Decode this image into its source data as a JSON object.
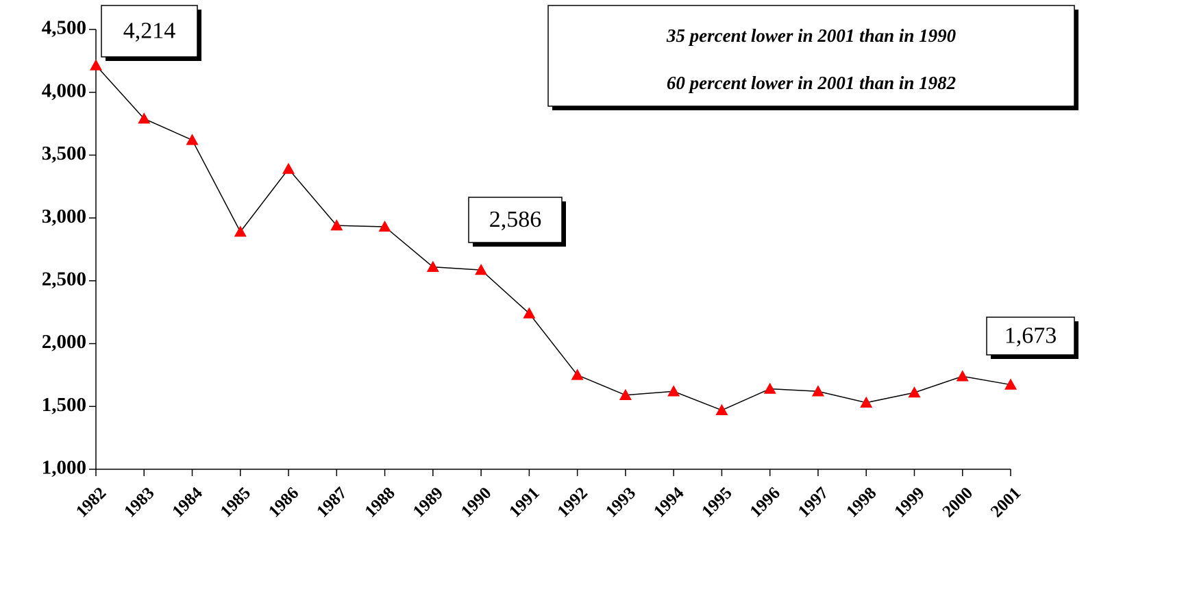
{
  "chart_data": {
    "type": "line",
    "categories": [
      "1982",
      "1983",
      "1984",
      "1985",
      "1986",
      "1987",
      "1988",
      "1989",
      "1990",
      "1991",
      "1992",
      "1993",
      "1994",
      "1995",
      "1996",
      "1997",
      "1998",
      "1999",
      "2000",
      "2001"
    ],
    "series": [
      {
        "color": "#ff0000",
        "values": [
          4214,
          3790,
          3620,
          2890,
          3390,
          2940,
          2930,
          2610,
          2586,
          2240,
          1750,
          1590,
          1620,
          1470,
          1640,
          1620,
          1530,
          1610,
          1740,
          1673
        ],
        "value_labels": [
          "4,214",
          null,
          null,
          null,
          null,
          null,
          null,
          null,
          "2,586",
          null,
          null,
          null,
          null,
          null,
          null,
          null,
          null,
          null,
          null,
          "1,673"
        ]
      }
    ],
    "ylim": [
      1000,
      4500
    ],
    "yticks": [
      {
        "value": 1000,
        "label": "1,000"
      },
      {
        "value": 1500,
        "label": "1,500"
      },
      {
        "value": 2000,
        "label": "2,000"
      },
      {
        "value": 2500,
        "label": "2,500"
      },
      {
        "value": 3000,
        "label": "3,000"
      },
      {
        "value": 3500,
        "label": "3,500"
      },
      {
        "value": 4000,
        "label": "4,000"
      },
      {
        "value": 4500,
        "label": "4,500"
      }
    ],
    "annotations": [
      "35 percent lower in 2001 than in 1990",
      "60 percent lower in 2001 than in 1982"
    ]
  }
}
